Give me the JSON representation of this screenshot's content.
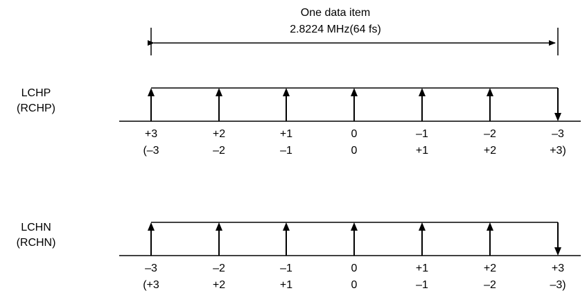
{
  "header": {
    "title": "One data item",
    "frequency": "2.8224 MHz(64 fs)"
  },
  "rows": [
    {
      "signal": "LCHP",
      "signal_alt": "(RCHP)",
      "top_labels": [
        "+3",
        "+2",
        "+1",
        "0",
        "–1",
        "–2",
        "–3"
      ],
      "bottom_labels": [
        "(–3",
        "–2",
        "–1",
        "0",
        "+1",
        "+2",
        "+3)"
      ]
    },
    {
      "signal": "LCHN",
      "signal_alt": "(RCHN)",
      "top_labels": [
        "–3",
        "–2",
        "–1",
        "0",
        "+1",
        "+2",
        "+3"
      ],
      "bottom_labels": [
        "(+3",
        "+2",
        "+1",
        "0",
        "–1",
        "–2",
        "–3)"
      ]
    }
  ],
  "colors": {
    "line": "#000000",
    "background": "#ffffff"
  }
}
